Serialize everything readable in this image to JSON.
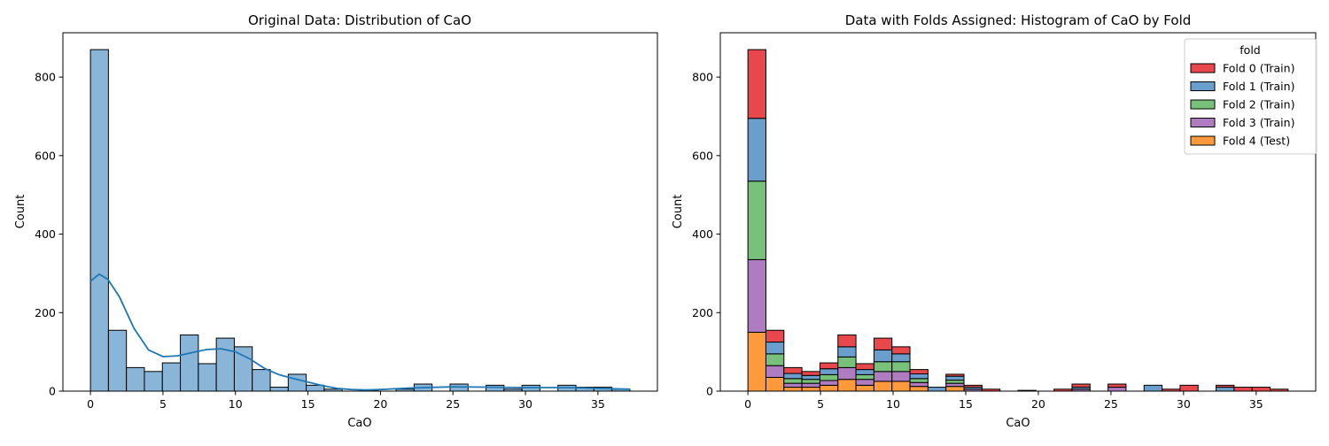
{
  "chart_data": [
    {
      "type": "bar",
      "title": "Original Data: Distribution of CaO",
      "xlabel": "CaO",
      "ylabel": "Count",
      "xlim": [
        -1.9,
        39.1
      ],
      "ylim": [
        0,
        913
      ],
      "xticks": [
        0,
        5,
        10,
        15,
        20,
        25,
        30,
        35
      ],
      "yticks": [
        0,
        200,
        400,
        600,
        800
      ],
      "bin_width": 1.24,
      "bin_starts": [
        0,
        1.24,
        2.48,
        3.72,
        4.96,
        6.2,
        7.44,
        8.68,
        9.92,
        11.16,
        12.4,
        13.64,
        14.88,
        16.12,
        17.36,
        18.6,
        19.84,
        21.08,
        22.32,
        23.56,
        24.8,
        26.04,
        27.28,
        28.52,
        29.76,
        31.0,
        32.24,
        33.48,
        34.72,
        35.96
      ],
      "values": [
        870,
        155,
        60,
        50,
        72,
        143,
        70,
        135,
        113,
        55,
        10,
        43,
        15,
        5,
        0,
        2,
        0,
        5,
        18,
        0,
        18,
        0,
        15,
        5,
        15,
        0,
        15,
        10,
        10,
        5
      ],
      "bar_color": "#89b6d8",
      "line_color": "#1f77b4",
      "kde": {
        "x": [
          0,
          0.6,
          1.2,
          2,
          3,
          4,
          5,
          6,
          7,
          8,
          9,
          10,
          11,
          12,
          13,
          14,
          15,
          16,
          17,
          18,
          19,
          20,
          22,
          25,
          28,
          30,
          33,
          35,
          37.2
        ],
        "y": [
          280,
          298,
          285,
          240,
          160,
          105,
          88,
          90,
          98,
          106,
          108,
          100,
          82,
          58,
          42,
          32,
          23,
          14,
          7,
          4,
          3,
          4,
          8,
          11,
          10,
          9,
          9,
          7,
          5
        ]
      }
    },
    {
      "type": "bar",
      "stacked": true,
      "title": "Data with Folds Assigned: Histogram of CaO by Fold",
      "xlabel": "CaO",
      "ylabel": "Count",
      "xlim": [
        -1.9,
        39.1
      ],
      "ylim": [
        0,
        913
      ],
      "xticks": [
        0,
        5,
        10,
        15,
        20,
        25,
        30,
        35
      ],
      "yticks": [
        0,
        200,
        400,
        600,
        800
      ],
      "bin_width": 1.24,
      "bin_starts": [
        0,
        1.24,
        2.48,
        3.72,
        4.96,
        6.2,
        7.44,
        8.68,
        9.92,
        11.16,
        12.4,
        13.64,
        14.88,
        16.12,
        17.36,
        18.6,
        19.84,
        21.08,
        22.32,
        23.56,
        24.8,
        26.04,
        27.28,
        28.52,
        29.76,
        31.0,
        32.24,
        33.48,
        34.72,
        35.96
      ],
      "legend": {
        "title": "fold",
        "loc": "upper right"
      },
      "series": [
        {
          "name": "Fold 4 (Test)",
          "color": "#ff9a3c",
          "values": [
            150,
            35,
            10,
            10,
            15,
            30,
            15,
            25,
            25,
            12,
            0,
            12,
            0,
            0,
            0,
            0,
            0,
            0,
            0,
            0,
            0,
            0,
            0,
            0,
            0,
            0,
            0,
            0,
            0,
            0
          ]
        },
        {
          "name": "Fold 3 (Train)",
          "color": "#b07cc1",
          "values": [
            185,
            30,
            10,
            10,
            12,
            30,
            15,
            25,
            25,
            10,
            0,
            8,
            5,
            0,
            0,
            0,
            0,
            0,
            5,
            0,
            10,
            0,
            0,
            0,
            0,
            0,
            0,
            0,
            0,
            0
          ]
        },
        {
          "name": "Fold 2 (Train)",
          "color": "#78c17a",
          "values": [
            200,
            30,
            12,
            10,
            15,
            27,
            12,
            25,
            25,
            10,
            0,
            8,
            0,
            0,
            0,
            0,
            0,
            0,
            0,
            0,
            0,
            0,
            0,
            0,
            0,
            0,
            0,
            0,
            0,
            0
          ]
        },
        {
          "name": "Fold 1 (Train)",
          "color": "#6a9fcd",
          "values": [
            160,
            30,
            13,
            10,
            15,
            26,
            13,
            30,
            20,
            12,
            10,
            10,
            5,
            0,
            0,
            0,
            0,
            0,
            5,
            0,
            0,
            0,
            15,
            0,
            0,
            0,
            10,
            0,
            0,
            0
          ]
        },
        {
          "name": "Fold 0 (Train)",
          "color": "#e8484b",
          "values": [
            175,
            30,
            15,
            10,
            15,
            30,
            15,
            30,
            18,
            11,
            0,
            5,
            5,
            5,
            0,
            2,
            0,
            5,
            8,
            0,
            8,
            0,
            0,
            5,
            15,
            0,
            5,
            10,
            10,
            5
          ]
        }
      ],
      "legend_order": [
        "Fold 0 (Train)",
        "Fold 1 (Train)",
        "Fold 2 (Train)",
        "Fold 3 (Train)",
        "Fold 4 (Test)"
      ]
    }
  ]
}
